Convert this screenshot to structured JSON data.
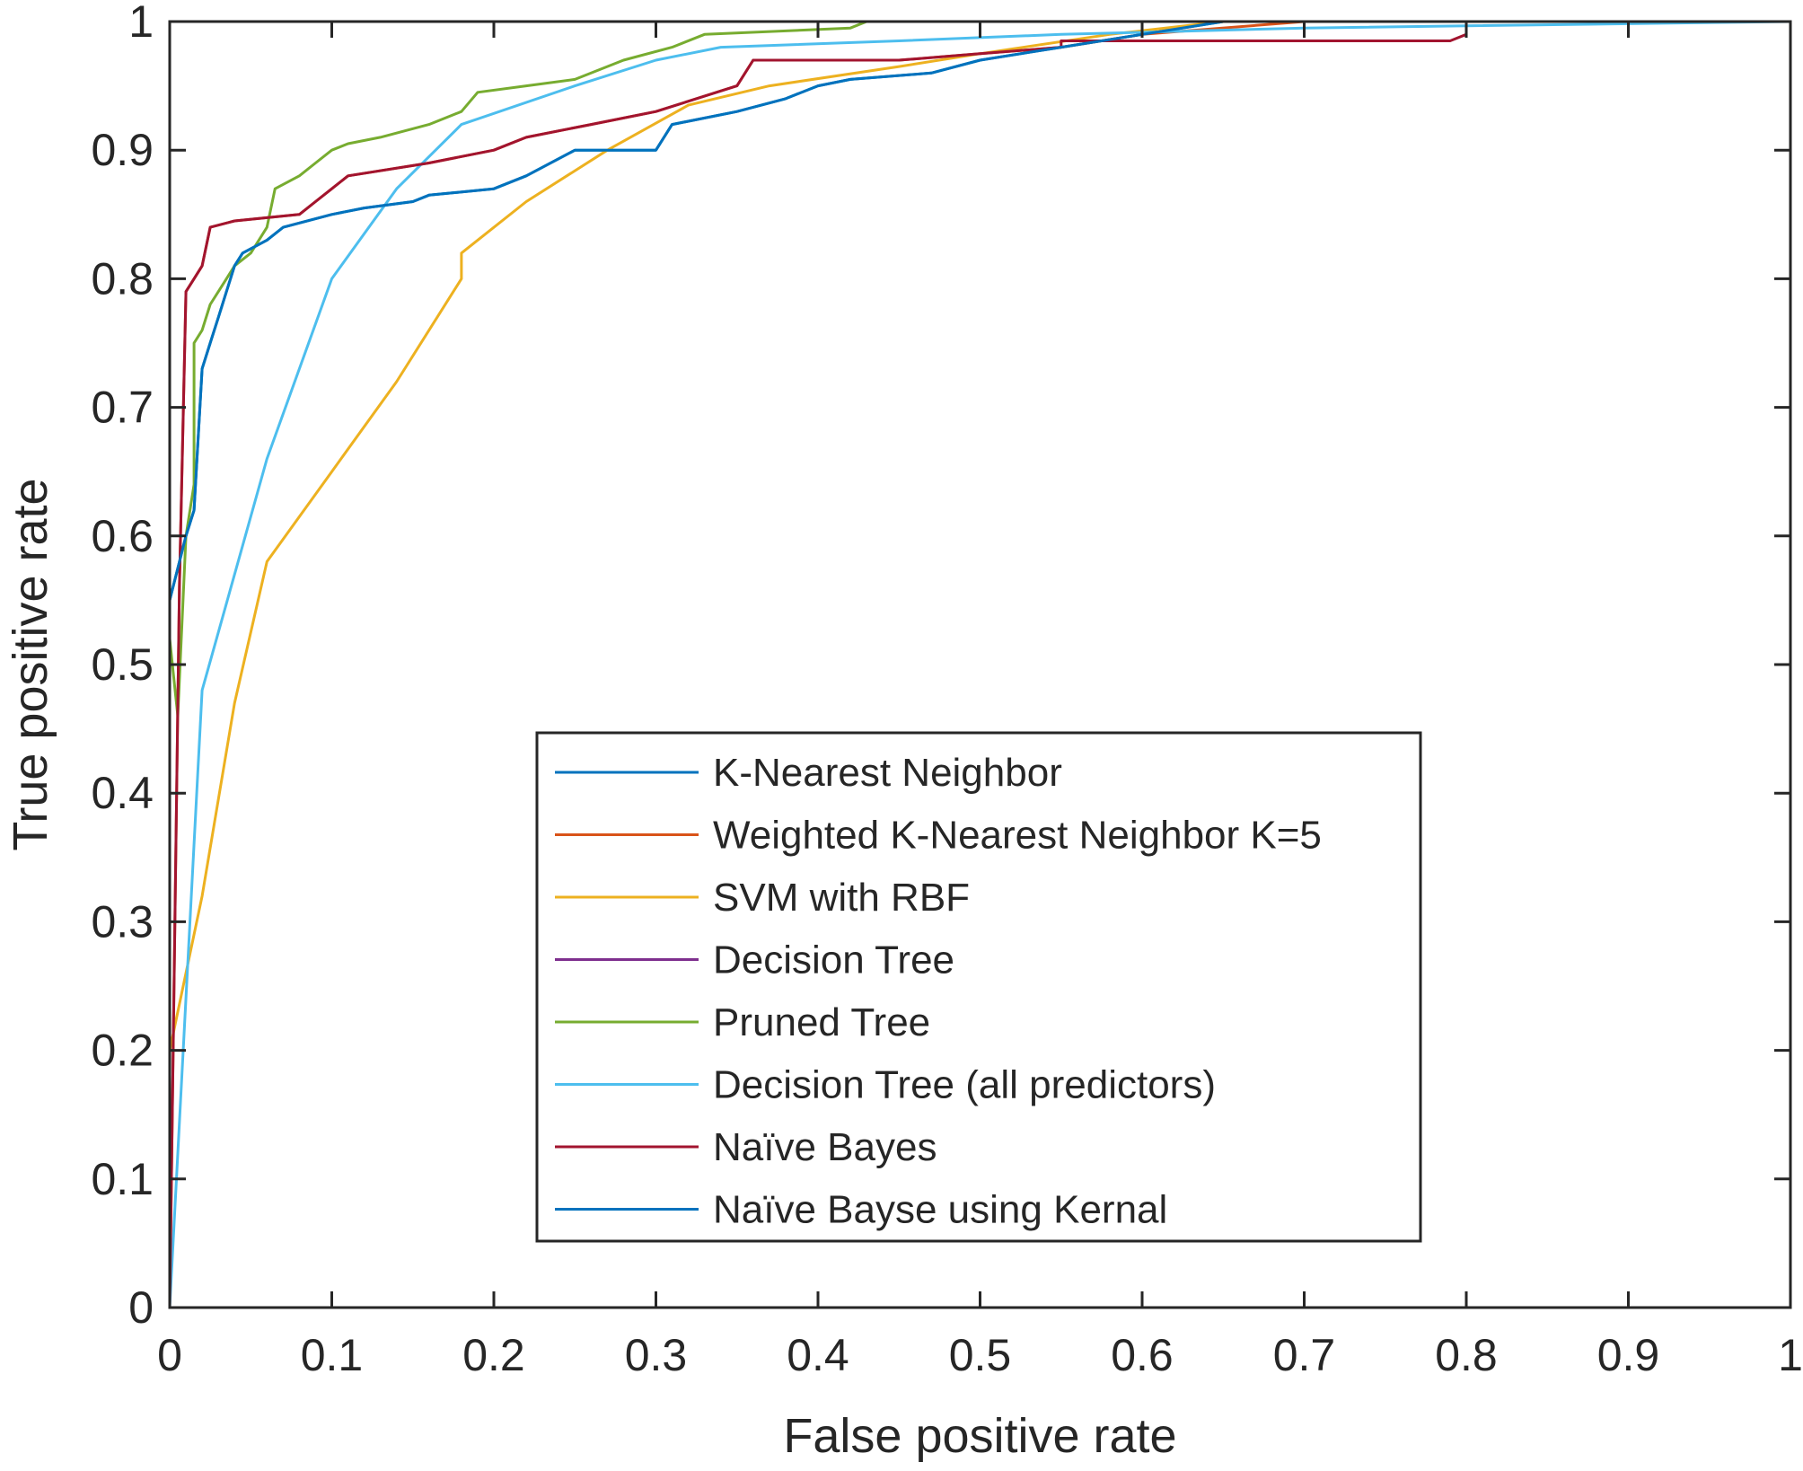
{
  "chart_data": {
    "type": "line",
    "title": "",
    "xlabel": "False positive rate",
    "ylabel": "True positive rate",
    "xlim": [
      0,
      1
    ],
    "ylim": [
      0,
      1
    ],
    "xticks": [
      "0",
      "0.1",
      "0.2",
      "0.3",
      "0.4",
      "0.5",
      "0.6",
      "0.7",
      "0.8",
      "0.9",
      "1"
    ],
    "yticks": [
      "0",
      "0.1",
      "0.2",
      "0.3",
      "0.4",
      "0.5",
      "0.6",
      "0.7",
      "0.8",
      "0.9",
      "1"
    ],
    "grid": false,
    "legend_position": "bottom-center",
    "series": [
      {
        "name": "K-Nearest Neighbor",
        "color": "#0072bd",
        "points": [
          [
            0,
            0
          ],
          [
            0,
            0.55
          ],
          [
            0.01,
            0.6
          ],
          [
            0.015,
            0.62
          ],
          [
            0.02,
            0.73
          ],
          [
            0.025,
            0.75
          ],
          [
            0.03,
            0.77
          ],
          [
            0.035,
            0.79
          ],
          [
            0.04,
            0.81
          ],
          [
            0.045,
            0.82
          ],
          [
            0.06,
            0.83
          ],
          [
            0.07,
            0.84
          ],
          [
            0.1,
            0.85
          ],
          [
            0.12,
            0.855
          ],
          [
            0.15,
            0.86
          ],
          [
            0.16,
            0.865
          ],
          [
            0.2,
            0.87
          ],
          [
            0.22,
            0.88
          ],
          [
            0.25,
            0.9
          ],
          [
            0.3,
            0.9
          ],
          [
            0.31,
            0.92
          ],
          [
            0.35,
            0.93
          ],
          [
            0.38,
            0.94
          ],
          [
            0.4,
            0.95
          ],
          [
            0.42,
            0.955
          ],
          [
            0.47,
            0.96
          ],
          [
            0.5,
            0.97
          ],
          [
            0.55,
            0.98
          ],
          [
            0.6,
            0.99
          ],
          [
            0.65,
            1
          ],
          [
            1,
            1
          ]
        ]
      },
      {
        "name": "Weighted K-Nearest Neighbor K=5",
        "color": "#d95319",
        "points": [
          [
            0,
            0
          ],
          [
            0.006,
            0.56
          ],
          [
            0.01,
            0.79
          ],
          [
            0.015,
            0.8
          ],
          [
            0.02,
            0.81
          ],
          [
            0.025,
            0.84
          ],
          [
            0.04,
            0.845
          ],
          [
            0.08,
            0.85
          ],
          [
            0.09,
            0.86
          ],
          [
            0.1,
            0.87
          ],
          [
            0.11,
            0.88
          ],
          [
            0.16,
            0.89
          ],
          [
            0.2,
            0.9
          ],
          [
            0.22,
            0.91
          ],
          [
            0.26,
            0.92
          ],
          [
            0.3,
            0.93
          ],
          [
            0.35,
            0.95
          ],
          [
            0.36,
            0.97
          ],
          [
            0.45,
            0.97
          ],
          [
            0.5,
            0.975
          ],
          [
            0.55,
            0.98
          ],
          [
            0.6,
            0.99
          ],
          [
            0.7,
            1
          ],
          [
            1,
            1
          ]
        ]
      },
      {
        "name": "SVM with RBF",
        "color": "#edb120",
        "points": [
          [
            0,
            0
          ],
          [
            0,
            0.2
          ],
          [
            0.02,
            0.32
          ],
          [
            0.04,
            0.47
          ],
          [
            0.06,
            0.58
          ],
          [
            0.1,
            0.65
          ],
          [
            0.14,
            0.72
          ],
          [
            0.18,
            0.8
          ],
          [
            0.18,
            0.82
          ],
          [
            0.22,
            0.86
          ],
          [
            0.27,
            0.9
          ],
          [
            0.32,
            0.935
          ],
          [
            0.37,
            0.95
          ],
          [
            0.45,
            0.965
          ],
          [
            0.5,
            0.975
          ],
          [
            0.58,
            0.99
          ],
          [
            0.65,
            1
          ],
          [
            1,
            1
          ]
        ]
      },
      {
        "name": "Decision Tree",
        "color": "#7e2f8e",
        "points": []
      },
      {
        "name": "Pruned Tree",
        "color": "#77ac30",
        "points": [
          [
            0,
            0
          ],
          [
            0,
            0.52
          ],
          [
            0.005,
            0.46
          ],
          [
            0.01,
            0.6
          ],
          [
            0.015,
            0.64
          ],
          [
            0.015,
            0.75
          ],
          [
            0.02,
            0.76
          ],
          [
            0.025,
            0.78
          ],
          [
            0.03,
            0.79
          ],
          [
            0.035,
            0.8
          ],
          [
            0.04,
            0.81
          ],
          [
            0.05,
            0.82
          ],
          [
            0.06,
            0.84
          ],
          [
            0.065,
            0.87
          ],
          [
            0.08,
            0.88
          ],
          [
            0.09,
            0.89
          ],
          [
            0.1,
            0.9
          ],
          [
            0.11,
            0.905
          ],
          [
            0.13,
            0.91
          ],
          [
            0.16,
            0.92
          ],
          [
            0.18,
            0.93
          ],
          [
            0.19,
            0.945
          ],
          [
            0.22,
            0.95
          ],
          [
            0.25,
            0.955
          ],
          [
            0.28,
            0.97
          ],
          [
            0.31,
            0.98
          ],
          [
            0.33,
            0.99
          ],
          [
            0.42,
            0.995
          ],
          [
            0.43,
            1
          ],
          [
            1,
            1
          ]
        ]
      },
      {
        "name": "Decision Tree (all predictors)",
        "color": "#4dbeee",
        "points": [
          [
            0,
            0
          ],
          [
            0.02,
            0.48
          ],
          [
            0.06,
            0.66
          ],
          [
            0.1,
            0.8
          ],
          [
            0.14,
            0.87
          ],
          [
            0.18,
            0.92
          ],
          [
            0.25,
            0.95
          ],
          [
            0.3,
            0.97
          ],
          [
            0.34,
            0.98
          ],
          [
            0.45,
            0.985
          ],
          [
            0.55,
            0.99
          ],
          [
            0.7,
            0.995
          ],
          [
            1,
            1
          ]
        ]
      },
      {
        "name": "Naïve Bayes",
        "color": "#a2142f",
        "points": [
          [
            0,
            0
          ],
          [
            0.006,
            0.56
          ],
          [
            0.01,
            0.79
          ],
          [
            0.015,
            0.8
          ],
          [
            0.02,
            0.81
          ],
          [
            0.025,
            0.84
          ],
          [
            0.04,
            0.845
          ],
          [
            0.08,
            0.85
          ],
          [
            0.09,
            0.86
          ],
          [
            0.1,
            0.87
          ],
          [
            0.11,
            0.88
          ],
          [
            0.16,
            0.89
          ],
          [
            0.2,
            0.9
          ],
          [
            0.22,
            0.91
          ],
          [
            0.26,
            0.92
          ],
          [
            0.3,
            0.93
          ],
          [
            0.35,
            0.95
          ],
          [
            0.36,
            0.97
          ],
          [
            0.45,
            0.97
          ],
          [
            0.5,
            0.975
          ],
          [
            0.55,
            0.98
          ],
          [
            0.55,
            0.985
          ],
          [
            0.79,
            0.985
          ],
          [
            0.8,
            0.99
          ],
          [
            0.8,
            1
          ],
          [
            1,
            1
          ]
        ]
      },
      {
        "name": "Naïve Bayse using Kernal",
        "color": "#0072bd",
        "points": [
          [
            0,
            0
          ],
          [
            0,
            0.55
          ],
          [
            0.01,
            0.6
          ],
          [
            0.015,
            0.62
          ],
          [
            0.02,
            0.73
          ],
          [
            0.025,
            0.75
          ],
          [
            0.03,
            0.77
          ],
          [
            0.035,
            0.79
          ],
          [
            0.04,
            0.81
          ],
          [
            0.045,
            0.82
          ],
          [
            0.06,
            0.83
          ],
          [
            0.07,
            0.84
          ],
          [
            0.1,
            0.85
          ],
          [
            0.12,
            0.855
          ],
          [
            0.15,
            0.86
          ],
          [
            0.16,
            0.865
          ],
          [
            0.2,
            0.87
          ],
          [
            0.22,
            0.88
          ],
          [
            0.25,
            0.9
          ],
          [
            0.3,
            0.9
          ],
          [
            0.31,
            0.92
          ],
          [
            0.35,
            0.93
          ],
          [
            0.38,
            0.94
          ],
          [
            0.4,
            0.95
          ],
          [
            0.42,
            0.955
          ],
          [
            0.47,
            0.96
          ],
          [
            0.5,
            0.97
          ],
          [
            0.55,
            0.98
          ],
          [
            0.6,
            0.99
          ],
          [
            0.65,
            1
          ],
          [
            1,
            1
          ]
        ]
      }
    ]
  }
}
